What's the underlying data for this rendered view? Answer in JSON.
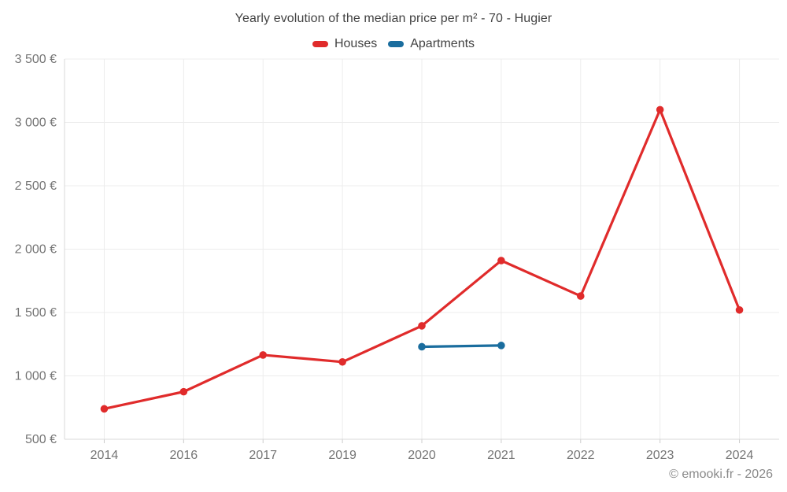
{
  "chart": {
    "title": "Yearly evolution of the median price per m² - 70 - Hugier"
  },
  "legend": [
    {
      "label": "Houses",
      "color": "#e02b2b"
    },
    {
      "label": "Apartments",
      "color": "#1a6d9e"
    }
  ],
  "footer": {
    "copyright": "© emooki.fr - 2026"
  },
  "colors": {
    "houses": "#e02b2b",
    "apartments": "#1a6d9e",
    "grid": "#ececec",
    "axis": "#d9d9d9",
    "tick": "#cccccc",
    "tick_label": "#757575"
  },
  "chart_data": {
    "type": "line",
    "title": "Yearly evolution of the median price per m² - 70 - Hugier",
    "categories": [
      "2014",
      "2016",
      "2017",
      "2019",
      "2020",
      "2021",
      "2022",
      "2023",
      "2024"
    ],
    "series": [
      {
        "name": "Houses",
        "color": "#e02b2b",
        "values": [
          740,
          875,
          1165,
          1110,
          1395,
          1910,
          1630,
          3100,
          1520
        ]
      },
      {
        "name": "Apartments",
        "color": "#1a6d9e",
        "values": [
          null,
          null,
          null,
          null,
          1230,
          1240,
          null,
          null,
          null
        ]
      }
    ],
    "xlabel": "",
    "ylabel": "",
    "ylim": [
      500,
      3500
    ],
    "yticks": [
      {
        "value": 500,
        "label": "500 €"
      },
      {
        "value": 1000,
        "label": "1 000 €"
      },
      {
        "value": 1500,
        "label": "1 500 €"
      },
      {
        "value": 2000,
        "label": "2 000 €"
      },
      {
        "value": 2500,
        "label": "2 500 €"
      },
      {
        "value": 3000,
        "label": "3 000 €"
      },
      {
        "value": 3500,
        "label": "3 500 €"
      }
    ],
    "grid": true,
    "legend_position": "top"
  }
}
